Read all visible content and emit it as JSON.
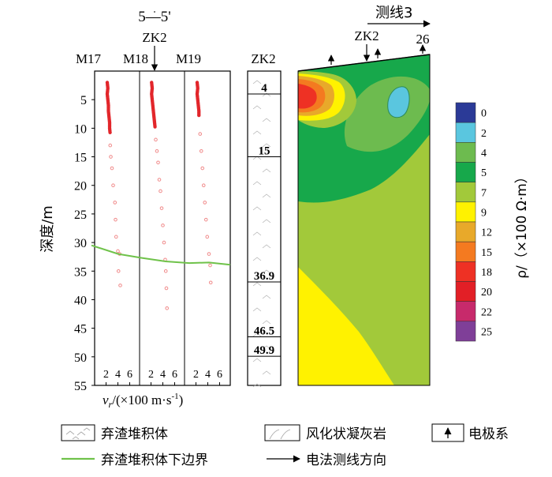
{
  "section": {
    "label": "5—5'",
    "borehole": "ZK2",
    "stations": [
      "M17",
      "M18",
      "M19"
    ]
  },
  "velocity_panel": {
    "ylabel": "深度/m",
    "yticks": [
      "5",
      "10",
      "15",
      "20",
      "25",
      "30",
      "35",
      "40",
      "45",
      "50",
      "55"
    ],
    "xticks": [
      "2",
      "4",
      "6"
    ],
    "xlabel_var": "v",
    "xlabel_sub": "r",
    "xlabel_units": "/(×100 m·s",
    "xlabel_exp": "-1",
    "xlabel_end": ")",
    "boundary_depths_m": [
      30.5,
      32.0,
      32.7,
      33.3,
      33.6,
      33.5,
      33.9
    ],
    "profiles": [
      {
        "station": "M17",
        "dense_points": [
          [
            2.2,
            2
          ],
          [
            2.3,
            3
          ],
          [
            2.2,
            4
          ],
          [
            2.3,
            5
          ],
          [
            2.4,
            6
          ],
          [
            2.4,
            7
          ],
          [
            2.5,
            8
          ],
          [
            2.6,
            9
          ],
          [
            2.6,
            10
          ],
          [
            2.7,
            11
          ]
        ],
        "sparse_points": [
          [
            2.7,
            13
          ],
          [
            2.8,
            15
          ],
          [
            3.0,
            17
          ],
          [
            3.2,
            20
          ],
          [
            3.5,
            23
          ],
          [
            3.6,
            26
          ],
          [
            3.7,
            29
          ],
          [
            4.0,
            31.5
          ],
          [
            4.3,
            32
          ],
          [
            4.1,
            35
          ],
          [
            4.4,
            37.5
          ]
        ]
      },
      {
        "station": "M18",
        "dense_points": [
          [
            2.1,
            2
          ],
          [
            2.2,
            3
          ],
          [
            2.1,
            4
          ],
          [
            2.2,
            5
          ],
          [
            2.3,
            6
          ],
          [
            2.4,
            7
          ],
          [
            2.5,
            8
          ],
          [
            2.6,
            9
          ],
          [
            2.7,
            10
          ]
        ],
        "sparse_points": [
          [
            2.8,
            12
          ],
          [
            3.0,
            14
          ],
          [
            3.2,
            16
          ],
          [
            3.4,
            19
          ],
          [
            3.6,
            21
          ],
          [
            3.8,
            24
          ],
          [
            4.0,
            27
          ],
          [
            4.2,
            30
          ],
          [
            4.4,
            33
          ],
          [
            4.5,
            35
          ],
          [
            4.6,
            38
          ],
          [
            4.7,
            41.5
          ]
        ]
      },
      {
        "station": "M19",
        "dense_points": [
          [
            2.2,
            2
          ],
          [
            2.3,
            3
          ],
          [
            2.2,
            4
          ],
          [
            2.3,
            5
          ],
          [
            2.4,
            6
          ],
          [
            2.5,
            7
          ],
          [
            2.5,
            8
          ]
        ],
        "sparse_points": [
          [
            2.7,
            11
          ],
          [
            2.9,
            14
          ],
          [
            3.1,
            17
          ],
          [
            3.3,
            20
          ],
          [
            3.5,
            23
          ],
          [
            3.7,
            26
          ],
          [
            3.9,
            29
          ],
          [
            4.2,
            32
          ],
          [
            4.4,
            34
          ],
          [
            4.5,
            37
          ]
        ]
      }
    ]
  },
  "borehole_column": {
    "title": "ZK2",
    "depths": [
      "4",
      "15",
      "36.9",
      "46.5",
      "49.9"
    ]
  },
  "resistivity_panel": {
    "survey_line": "测线3",
    "borehole": "ZK2",
    "end_station": "26",
    "colorbar_label": "ρ/（×100 Ω·m）",
    "levels": [
      "0",
      "2",
      "4",
      "5",
      "7",
      "9",
      "12",
      "15",
      "18",
      "20",
      "22",
      "25"
    ],
    "colors": [
      "#2b3a97",
      "#5ac6df",
      "#6dbb4f",
      "#17a84b",
      "#a2c93a",
      "#fff200",
      "#e8a92a",
      "#f47a20",
      "#ee3124",
      "#e21f26",
      "#c72a6b",
      "#7f3f98"
    ]
  },
  "legend": [
    {
      "icon": "debris-hatch",
      "label": "弃渣堆积体"
    },
    {
      "icon": "tuff-hatch",
      "label": "风化状凝灰岩"
    },
    {
      "icon": "electrode-arrow",
      "label": "电极系"
    },
    {
      "icon": "green-line",
      "label": "弃渣堆积体下边界"
    },
    {
      "icon": "direction-arrow",
      "label": "电法测线方向"
    }
  ]
}
